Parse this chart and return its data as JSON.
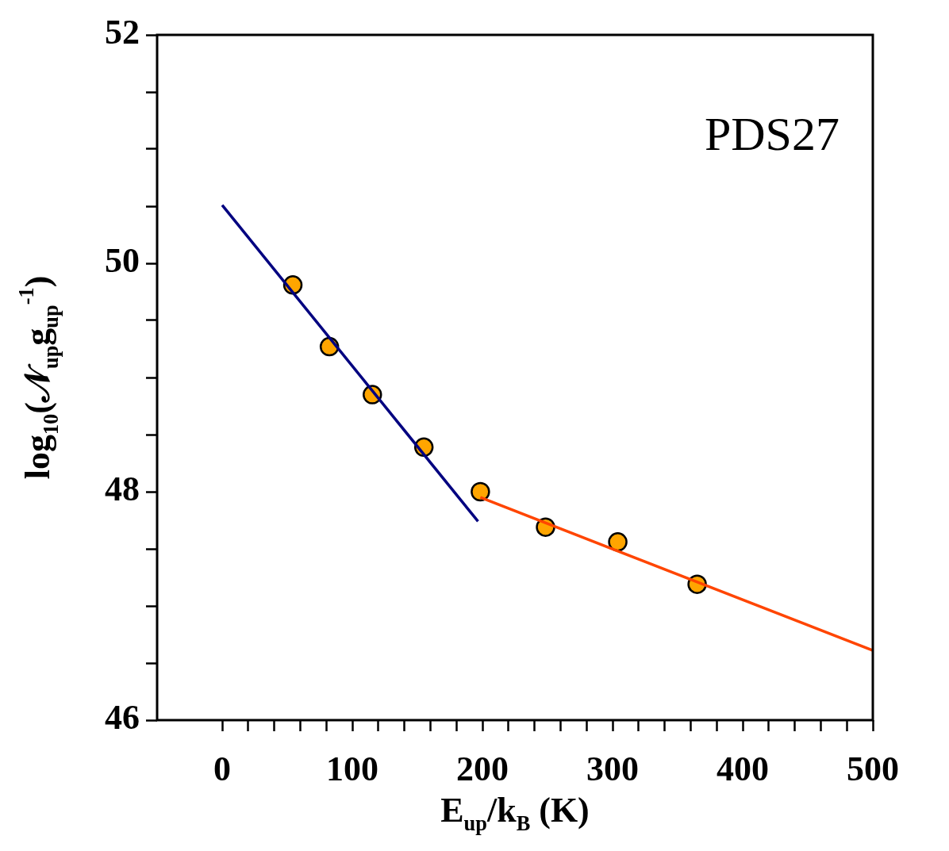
{
  "chart_data": {
    "type": "scatter",
    "xlabel": "E$_{up}$/k$_{B}$ (K)",
    "ylabel": "log$_{10}$(𝒩$_{up}$g$_{up}$$^{-1}$)",
    "annotations": [
      "PDS27"
    ],
    "xlim": [
      -50,
      500
    ],
    "ylim": [
      46,
      52
    ],
    "xticks": [
      0,
      {
        "value": 20,
        "label": null
      },
      {
        "value": 40,
        "label": null
      },
      {
        "value": 60,
        "label": null
      },
      {
        "value": 80,
        "label": null
      },
      100,
      {
        "value": 120,
        "label": null
      },
      {
        "value": 140,
        "label": null
      },
      {
        "value": 160,
        "label": null
      },
      {
        "value": 180,
        "label": null
      },
      200,
      {
        "value": 220,
        "label": null
      },
      {
        "value": 240,
        "label": null
      },
      {
        "value": 260,
        "label": null
      },
      {
        "value": 280,
        "label": null
      },
      300,
      {
        "value": 320,
        "label": null
      },
      {
        "value": 340,
        "label": null
      },
      {
        "value": 360,
        "label": null
      },
      {
        "value": 380,
        "label": null
      },
      400,
      {
        "value": 420,
        "label": null
      },
      {
        "value": 440,
        "label": null
      },
      {
        "value": 460,
        "label": null
      },
      {
        "value": 480,
        "label": null
      },
      500
    ],
    "yticks": [
      46,
      {
        "value": 46.5,
        "label": null
      },
      {
        "value": 47,
        "label": null
      },
      {
        "value": 47.5,
        "label": null
      },
      48,
      {
        "value": 48.5,
        "label": null
      },
      {
        "value": 49,
        "label": null
      },
      {
        "value": 49.5,
        "label": null
      },
      50,
      {
        "value": 50.5,
        "label": null
      },
      {
        "value": 51,
        "label": null
      },
      {
        "value": 51.5,
        "label": null
      },
      52
    ],
    "grid": false,
    "legend": false,
    "series": [
      {
        "type": "line",
        "color": "#000080",
        "x": [
          0,
          196.6
        ],
        "values": [
          50.51,
          47.74
        ]
      },
      {
        "type": "line",
        "color": "#ff4500",
        "x": [
          198.4,
          500
        ],
        "values": [
          47.95,
          46.61
        ]
      },
      {
        "type": "scatter",
        "color": "#ffa500",
        "marker": "circle",
        "x": [
          54.3,
          82.4,
          115.4,
          155,
          198.4,
          248.5,
          304,
          365
        ],
        "values": [
          49.81,
          49.27,
          48.85,
          48.39,
          48.0,
          47.69,
          47.56,
          47.19
        ]
      }
    ]
  }
}
